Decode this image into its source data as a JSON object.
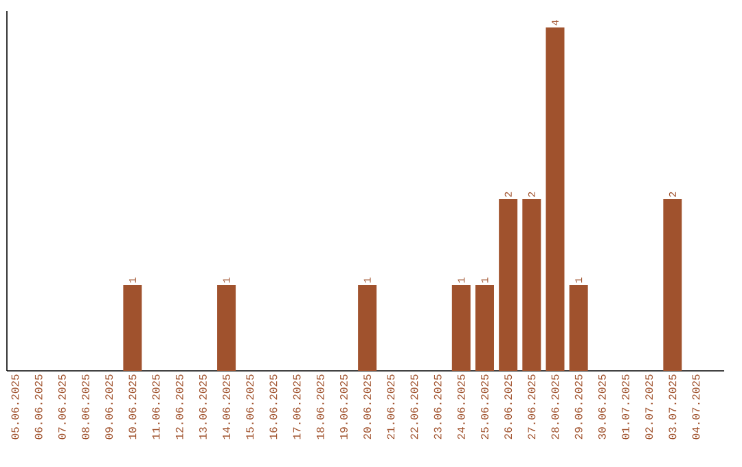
{
  "chart_data": {
    "type": "bar",
    "categories": [
      "05.06.2025",
      "06.06.2025",
      "07.06.2025",
      "08.06.2025",
      "09.06.2025",
      "10.06.2025",
      "11.06.2025",
      "12.06.2025",
      "13.06.2025",
      "14.06.2025",
      "15.06.2025",
      "16.06.2025",
      "17.06.2025",
      "18.06.2025",
      "19.06.2025",
      "20.06.2025",
      "21.06.2025",
      "22.06.2025",
      "23.06.2025",
      "24.06.2025",
      "25.06.2025",
      "26.06.2025",
      "27.06.2025",
      "28.06.2025",
      "29.06.2025",
      "30.06.2025",
      "01.07.2025",
      "02.07.2025",
      "03.07.2025",
      "04.07.2025"
    ],
    "values": [
      0,
      0,
      0,
      0,
      0,
      1,
      0,
      0,
      0,
      1,
      0,
      0,
      0,
      0,
      0,
      1,
      0,
      0,
      0,
      1,
      1,
      2,
      2,
      4,
      1,
      0,
      0,
      0,
      2,
      0
    ],
    "value_labels": [
      null,
      null,
      null,
      null,
      null,
      "1",
      null,
      null,
      null,
      "1",
      null,
      null,
      null,
      null,
      null,
      "1",
      null,
      null,
      null,
      "1",
      "1",
      "2",
      "2",
      "4",
      "1",
      null,
      null,
      null,
      "2",
      null
    ],
    "color": "#a0522d"
  }
}
